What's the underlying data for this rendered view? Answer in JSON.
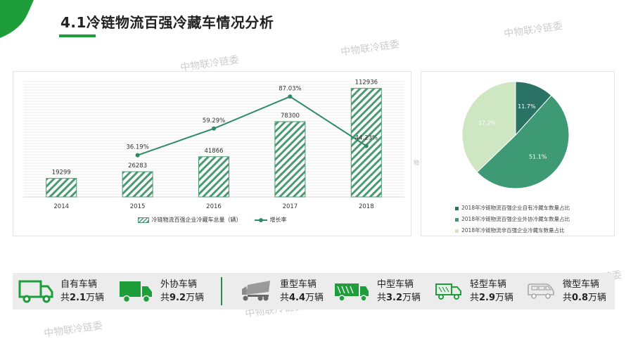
{
  "page": {
    "title": "4.1冷链物流百强冷藏车情况分析",
    "watermark": "中物联冷链委",
    "side_mark": "物"
  },
  "chart_data": [
    {
      "type": "bar",
      "categories": [
        "2014",
        "2015",
        "2016",
        "2017",
        "2018"
      ],
      "series": [
        {
          "name": "冷链物流百强企业冷藏车总量（辆）",
          "values": [
            19299,
            26283,
            41866,
            78300,
            112936
          ],
          "labels": [
            "19299",
            "26283",
            "41866",
            "78300",
            "112936"
          ]
        },
        {
          "name": "增长率",
          "type": "line",
          "values": [
            null,
            36.19,
            59.29,
            87.03,
            44.23
          ],
          "labels": [
            "",
            "36.19%",
            "59.29%",
            "87.03%",
            "44.23%"
          ]
        }
      ],
      "ylim": [
        0,
        120000
      ],
      "y2lim": [
        0,
        100
      ],
      "grid": true,
      "legend_position": "bottom",
      "colors": {
        "bar": "#4a9a72",
        "line": "#2e8b66"
      }
    },
    {
      "type": "pie",
      "slices": [
        {
          "label": "2018年冷链物流百强企业自有冷藏车数量占比",
          "value": 11.7,
          "text": "11.7%",
          "color": "#2a7364"
        },
        {
          "label": "2018年冷链物流百强企业外协冷藏车数量占比",
          "value": 51.1,
          "text": "51.1%",
          "color": "#3e9a74"
        },
        {
          "label": "2018年冷链物流非百强企业冷藏车数量占比",
          "value": 37.2,
          "text": "37.2%",
          "color": "#cfe6c2"
        }
      ],
      "legend_position": "bottom"
    }
  ],
  "vehicles": [
    {
      "name": "自有车辆",
      "prefix": "共",
      "amount": "2.1",
      "unit": "万辆",
      "icon": "box-truck-outline-icon"
    },
    {
      "name": "外协车辆",
      "prefix": "共",
      "amount": "9.2",
      "unit": "万辆",
      "icon": "box-truck-solid-icon"
    },
    {
      "name": "重型车辆",
      "prefix": "共",
      "amount": "4.4",
      "unit": "万辆",
      "icon": "semi-truck-icon"
    },
    {
      "name": "中型车辆",
      "prefix": "共",
      "amount": "3.2",
      "unit": "万辆",
      "icon": "medium-truck-icon"
    },
    {
      "name": "轻型车辆",
      "prefix": "共",
      "amount": "2.9",
      "unit": "万辆",
      "icon": "light-truck-icon"
    },
    {
      "name": "微型车辆",
      "prefix": "共",
      "amount": "0.8",
      "unit": "万辆",
      "icon": "van-icon"
    }
  ],
  "theme": {
    "accent": "#1e9e3a"
  }
}
